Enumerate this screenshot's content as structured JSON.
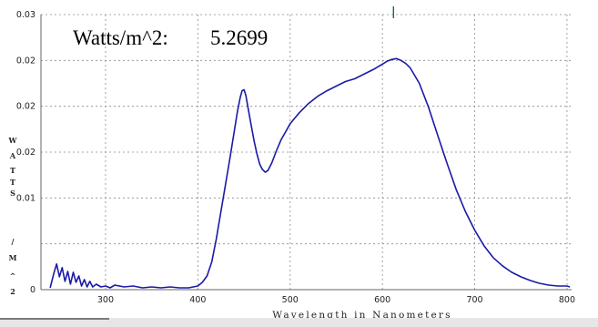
{
  "readout": {
    "label": "Watts/m^2:",
    "value": "5.2699"
  },
  "chart_data": {
    "type": "line",
    "title": "",
    "xlabel": "Wavelength in Nanometers",
    "ylabel": "WATTS/M^2",
    "xlim": [
      230,
      805
    ],
    "ylim": [
      0,
      0.03
    ],
    "x_ticks": [
      "300",
      "400",
      "500",
      "600",
      "700",
      "800"
    ],
    "y_ticks": [
      {
        "value": 0,
        "label": "0"
      },
      {
        "value": 0.005,
        "label": ""
      },
      {
        "value": 0.01,
        "label": "0.01"
      },
      {
        "value": 0.015,
        "label": "0.02"
      },
      {
        "value": 0.02,
        "label": "0.02"
      },
      {
        "value": 0.025,
        "label": "0.02"
      },
      {
        "value": 0.03,
        "label": "0.03"
      }
    ],
    "grid": true,
    "colors": {
      "line": "#1a1aa6",
      "marker": "#1f6b3a",
      "grid": "#8a8a8a"
    },
    "marker_x": 612,
    "series": [
      {
        "name": "",
        "x": [
          240,
          244,
          247,
          250,
          253,
          256,
          259,
          262,
          265,
          268,
          271,
          274,
          277,
          280,
          283,
          286,
          290,
          295,
          300,
          305,
          310,
          320,
          330,
          340,
          350,
          360,
          370,
          380,
          390,
          400,
          405,
          410,
          415,
          420,
          425,
          430,
          435,
          440,
          443,
          446,
          448,
          450,
          452,
          455,
          458,
          461,
          464,
          467,
          470,
          473,
          476,
          480,
          485,
          490,
          495,
          500,
          505,
          510,
          520,
          530,
          540,
          550,
          560,
          570,
          580,
          590,
          600,
          605,
          610,
          615,
          620,
          625,
          630,
          640,
          650,
          660,
          670,
          680,
          690,
          700,
          710,
          720,
          730,
          740,
          750,
          760,
          770,
          780,
          790,
          800,
          803
        ],
        "y": [
          0.0002,
          0.0018,
          0.0028,
          0.0014,
          0.0024,
          0.0009,
          0.002,
          0.0006,
          0.0019,
          0.0008,
          0.0015,
          0.0004,
          0.0011,
          0.0003,
          0.0009,
          0.0003,
          0.0006,
          0.0003,
          0.0004,
          0.0002,
          0.0005,
          0.0003,
          0.0004,
          0.0002,
          0.0003,
          0.0002,
          0.0003,
          0.0002,
          0.0002,
          0.0004,
          0.0008,
          0.0015,
          0.003,
          0.0055,
          0.0085,
          0.0115,
          0.0145,
          0.0176,
          0.0195,
          0.021,
          0.0217,
          0.0218,
          0.0212,
          0.0195,
          0.0178,
          0.0162,
          0.0148,
          0.0137,
          0.0131,
          0.0128,
          0.013,
          0.0138,
          0.0151,
          0.0163,
          0.0172,
          0.0181,
          0.0187,
          0.0193,
          0.0203,
          0.0211,
          0.0217,
          0.0222,
          0.0227,
          0.023,
          0.0235,
          0.024,
          0.0246,
          0.0249,
          0.0251,
          0.0252,
          0.025,
          0.0247,
          0.0242,
          0.0225,
          0.0199,
          0.0168,
          0.0138,
          0.0109,
          0.0085,
          0.0065,
          0.0048,
          0.0035,
          0.0026,
          0.0019,
          0.0014,
          0.001,
          0.0007,
          0.0005,
          0.0004,
          0.0004,
          0.0003
        ]
      }
    ]
  }
}
